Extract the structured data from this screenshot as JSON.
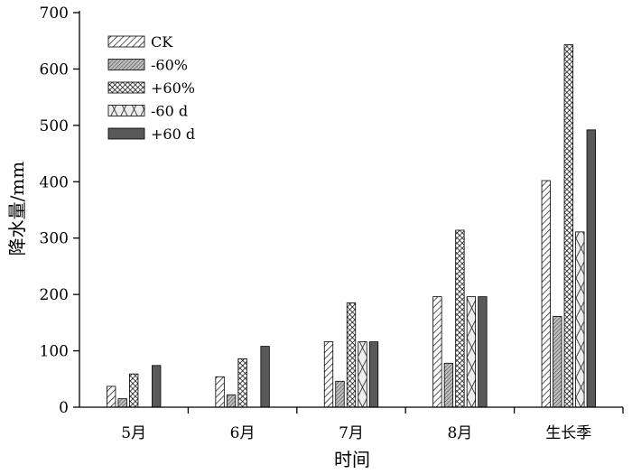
{
  "chart_data": {
    "type": "bar",
    "xlabel": "时间",
    "ylabel": "降水量/mm",
    "ylim": [
      0,
      700
    ],
    "yticks": [
      0,
      100,
      200,
      300,
      400,
      500,
      600,
      700
    ],
    "categories": [
      "5月",
      "6月",
      "7月",
      "8月",
      "生长季"
    ],
    "grid": false,
    "legend_position": "top-left",
    "series": [
      {
        "name": "CK",
        "values": [
          37,
          54,
          116,
          196,
          402
        ],
        "pattern": "diagonal-hatch",
        "color": "#ffffff"
      },
      {
        "name": "-60%",
        "values": [
          15,
          22,
          46,
          78,
          161
        ],
        "pattern": "dense-diagonal-hatch",
        "color": "#bbbbbb"
      },
      {
        "name": "+60%",
        "values": [
          59,
          86,
          185,
          314,
          643
        ],
        "pattern": "crosshatch",
        "color": "#ffffff"
      },
      {
        "name": "-60 d",
        "values": [
          0,
          0,
          116,
          196,
          311
        ],
        "pattern": "x-pattern",
        "color": "#eeeeee"
      },
      {
        "name": "+60 d",
        "values": [
          74,
          108,
          116,
          196,
          492
        ],
        "pattern": "solid",
        "color": "#595959"
      }
    ]
  }
}
